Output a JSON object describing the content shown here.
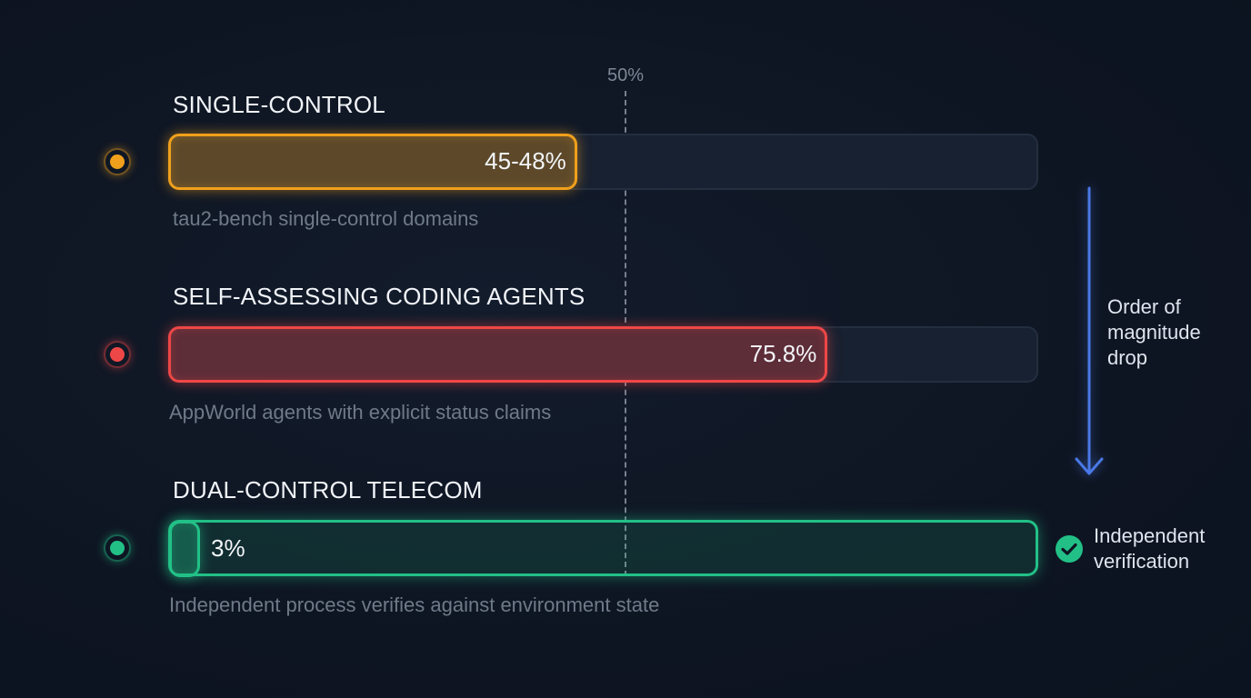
{
  "chart_data": {
    "type": "bar",
    "orientation": "horizontal",
    "reference_line": {
      "value": 50,
      "label": "50%"
    },
    "xlim": [
      0,
      100
    ],
    "rows": [
      {
        "title": "SINGLE-CONTROL",
        "value": 47,
        "value_label": "45-48%",
        "subtitle": "tau2-bench single-control domains",
        "color": "#f0a01c"
      },
      {
        "title": "SELF-ASSESSING CODING AGENTS",
        "value": 75.8,
        "value_label": "75.8%",
        "subtitle": "AppWorld agents with explicit status claims",
        "color": "#ee4747"
      },
      {
        "title": "DUAL-CONTROL TELECOM",
        "value": 3,
        "value_label": "3%",
        "subtitle": "Independent process verifies against environment state",
        "color": "#22c087"
      }
    ],
    "annotations": {
      "drop_label": "Order of\nmagnitude\ndrop",
      "verification_label": "Independent\nverification"
    },
    "colors": {
      "arrow": "#4a78e6",
      "track": "#182131",
      "background": "#0e1522"
    }
  }
}
